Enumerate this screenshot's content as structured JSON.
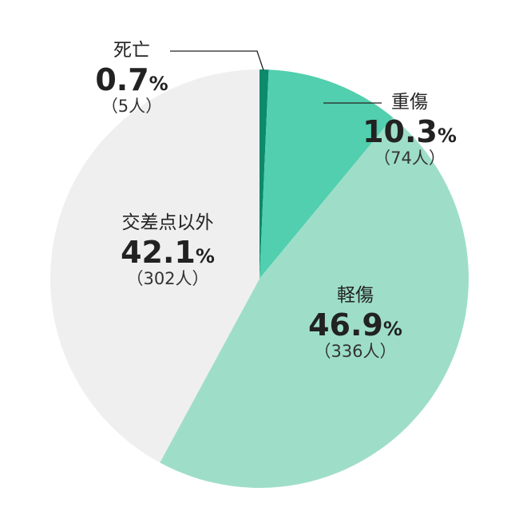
{
  "chart_data": {
    "type": "pie",
    "slices": [
      {
        "name": "死亡",
        "percent": 0.7,
        "percent_text": "0.7",
        "count_text": "（5人）",
        "color": "#0c8a6b"
      },
      {
        "name": "重傷",
        "percent": 10.3,
        "percent_text": "10.3",
        "count_text": "（74人）",
        "color": "#52cfae"
      },
      {
        "name": "軽傷",
        "percent": 46.9,
        "percent_text": "46.9",
        "count_text": "（336人）",
        "color": "#9edec9"
      },
      {
        "name": "交差点以外",
        "percent": 42.1,
        "percent_text": "42.1",
        "count_text": "（302人）",
        "color": "#efefef"
      }
    ],
    "unit": "%",
    "start_angle_deg": 0,
    "direction": "clockwise",
    "legend": "none"
  }
}
